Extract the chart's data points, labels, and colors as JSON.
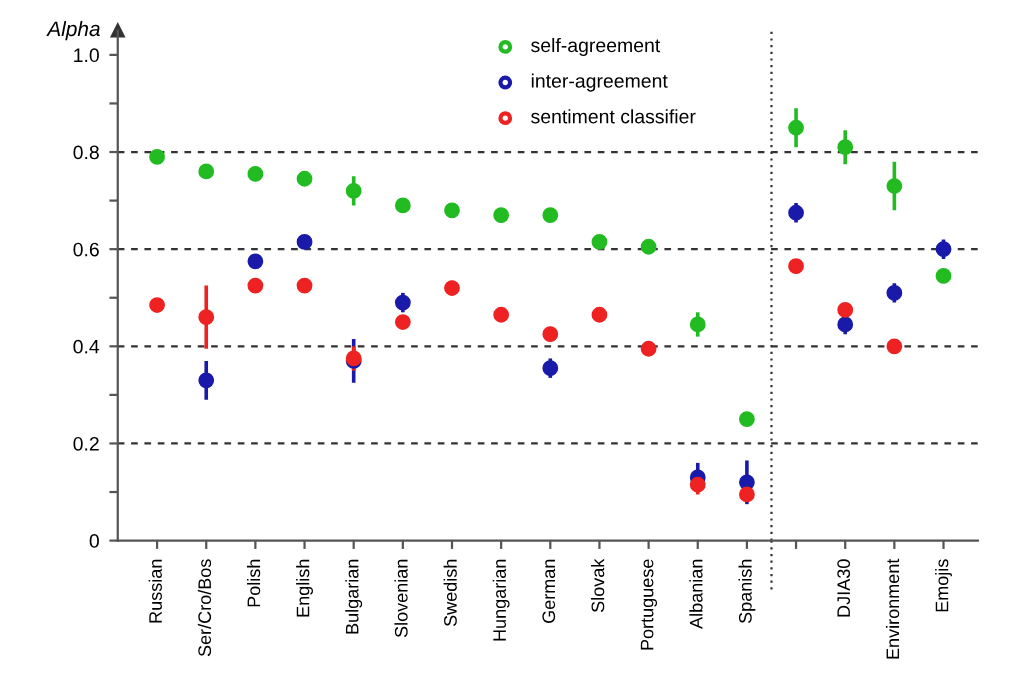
{
  "chart_data": {
    "type": "scatter",
    "ylabel": "Alpha",
    "categories": [
      "Russian",
      "Ser/Cro/Bos",
      "Polish",
      "English",
      "Bulgarian",
      "Slovenian",
      "Swedish",
      "Hungarian",
      "German",
      "Slovak",
      "Portuguese",
      "Albanian",
      "Spanish",
      null,
      "DJIA30",
      "Environment",
      "Emojis"
    ],
    "series": [
      {
        "name": "self-agreement",
        "color": "#22bb22",
        "values": [
          0.79,
          0.76,
          0.755,
          0.745,
          0.72,
          0.69,
          0.68,
          0.67,
          0.67,
          0.615,
          0.605,
          0.445,
          0.25,
          0.85,
          0.81,
          0.73,
          0.545
        ],
        "errors": [
          0.01,
          0.01,
          0.015,
          0.015,
          0.03,
          0.01,
          0.015,
          0.015,
          0.01,
          0.01,
          0.01,
          0.025,
          0.01,
          0.04,
          0.035,
          0.05,
          0.015
        ]
      },
      {
        "name": "inter-agreement",
        "color": "#1a1aaa",
        "values": [
          null,
          0.33,
          0.575,
          0.615,
          0.37,
          0.49,
          null,
          null,
          0.355,
          null,
          null,
          0.13,
          0.12,
          0.675,
          0.445,
          0.51,
          0.6
        ],
        "errors": [
          null,
          0.04,
          0.01,
          0.01,
          0.045,
          0.02,
          null,
          null,
          0.02,
          null,
          null,
          0.03,
          0.045,
          0.02,
          0.02,
          0.02,
          0.02
        ]
      },
      {
        "name": "sentiment classifier",
        "color": "#ee2222",
        "values": [
          0.485,
          0.46,
          0.525,
          0.525,
          0.375,
          0.45,
          0.52,
          0.465,
          0.425,
          0.465,
          0.395,
          0.115,
          0.095,
          0.565,
          0.475,
          0.4,
          null
        ],
        "errors": [
          0.01,
          0.065,
          0.01,
          0.01,
          0.025,
          0.01,
          0.015,
          0.01,
          0.015,
          0.01,
          0.01,
          0.02,
          0.015,
          0.015,
          0.01,
          0.015,
          null
        ]
      }
    ],
    "marker": "circle",
    "legend": "top",
    "ylim": [
      0,
      1.05
    ],
    "yticks": [
      0,
      {
        "value": 0.1,
        "label": null
      },
      0.2,
      {
        "value": 0.3,
        "label": null
      },
      0.4,
      {
        "value": 0.5,
        "label": null
      },
      0.6,
      {
        "value": 0.7,
        "label": null
      },
      0.8,
      {
        "value": 0.9,
        "label": null
      },
      {
        "value": 1.0,
        "label": "1.0"
      }
    ],
    "ref_lines": [
      {
        "axis": "y",
        "value": 0.2,
        "line_style": "dashed"
      },
      {
        "axis": "y",
        "value": 0.4,
        "line_style": "dashed"
      },
      {
        "axis": "y",
        "value": 0.6,
        "line_style": "dashed"
      },
      {
        "axis": "y",
        "value": 0.8,
        "line_style": "dashed"
      }
    ]
  }
}
